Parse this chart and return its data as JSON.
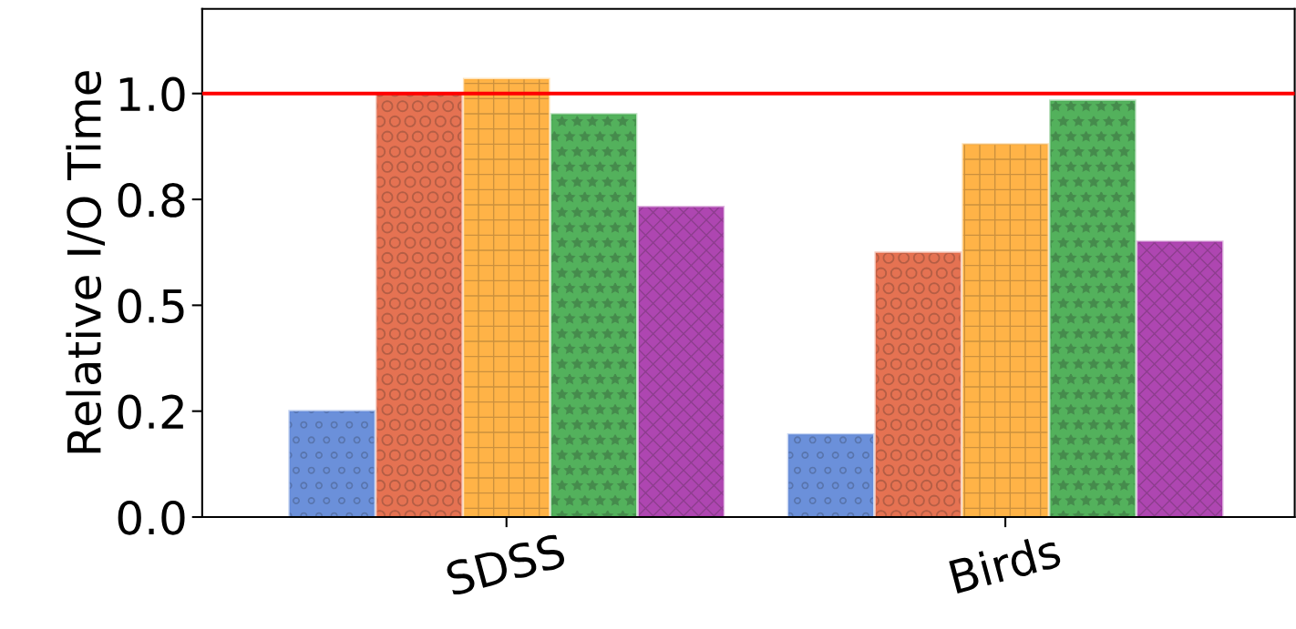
{
  "chart_data": {
    "type": "bar",
    "ylabel": "Relative I/O Time",
    "categories": [
      "SDSS",
      "Birds"
    ],
    "series": [
      {
        "color": "#5b84d6",
        "values": [
          0.25,
          0.195
        ]
      },
      {
        "color": "#e2623f",
        "values": [
          1.0,
          0.624
        ]
      },
      {
        "color": "#ffab33",
        "values": [
          1.034,
          0.88
        ]
      },
      {
        "color": "#40a84a",
        "values": [
          0.951,
          0.983
        ]
      },
      {
        "color": "#a532a8",
        "values": [
          0.732,
          0.65
        ]
      }
    ],
    "ylim": [
      0,
      1.2
    ],
    "yticks": [
      {
        "value": 0,
        "label": "0.0"
      },
      {
        "value": 0.25,
        "label": "0.2"
      },
      {
        "value": 0.5,
        "label": "0.5"
      },
      {
        "value": 0.75,
        "label": "0.8"
      },
      {
        "value": 1.0,
        "label": "1.0"
      }
    ],
    "ref_lines": [
      {
        "axis": "y",
        "value": 1.0,
        "color": "#ff0000"
      }
    ],
    "grid": false,
    "legend": false
  }
}
